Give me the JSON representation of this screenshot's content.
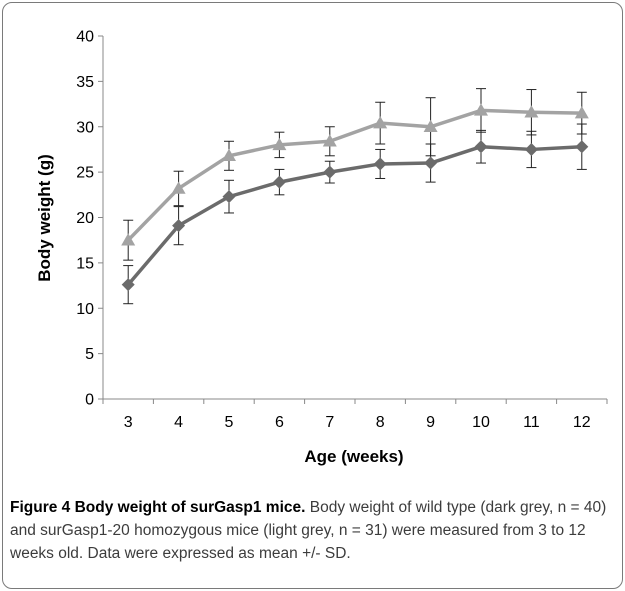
{
  "chart_data": {
    "type": "line",
    "xlabel": "Age (weeks)",
    "ylabel": "Body weight (g)",
    "x": [
      3,
      4,
      5,
      6,
      7,
      8,
      9,
      10,
      11,
      12
    ],
    "xlim": [
      3,
      12
    ],
    "ylim": [
      0,
      40
    ],
    "yticks": [
      0,
      5,
      10,
      15,
      20,
      25,
      30,
      35,
      40
    ],
    "grid": false,
    "legend": "none",
    "series": [
      {
        "marker": "diamond",
        "color": "#6b6b6b",
        "values": [
          12.6,
          19.1,
          22.3,
          23.9,
          25.0,
          25.9,
          26.0,
          27.8,
          27.5,
          27.8
        ],
        "error": [
          2.1,
          2.1,
          1.8,
          1.4,
          1.2,
          1.6,
          2.1,
          1.8,
          2.0,
          2.5
        ]
      },
      {
        "marker": "triangle",
        "color": "#a3a3a3",
        "values": [
          17.5,
          23.2,
          26.8,
          28.0,
          28.4,
          30.4,
          30.0,
          31.8,
          31.6,
          31.5
        ],
        "error": [
          2.2,
          1.9,
          1.6,
          1.4,
          1.6,
          2.3,
          3.2,
          2.4,
          2.5,
          2.3
        ]
      }
    ]
  },
  "caption": {
    "title": "Figure 4 Body weight of surGasp1 mice.",
    "text": " Body weight of wild type (dark grey, n = 40) and surGasp1-20 homozygous mice (light grey, n = 31) were measured from 3 to 12 weeks old. Data were expressed as mean +/- SD."
  }
}
